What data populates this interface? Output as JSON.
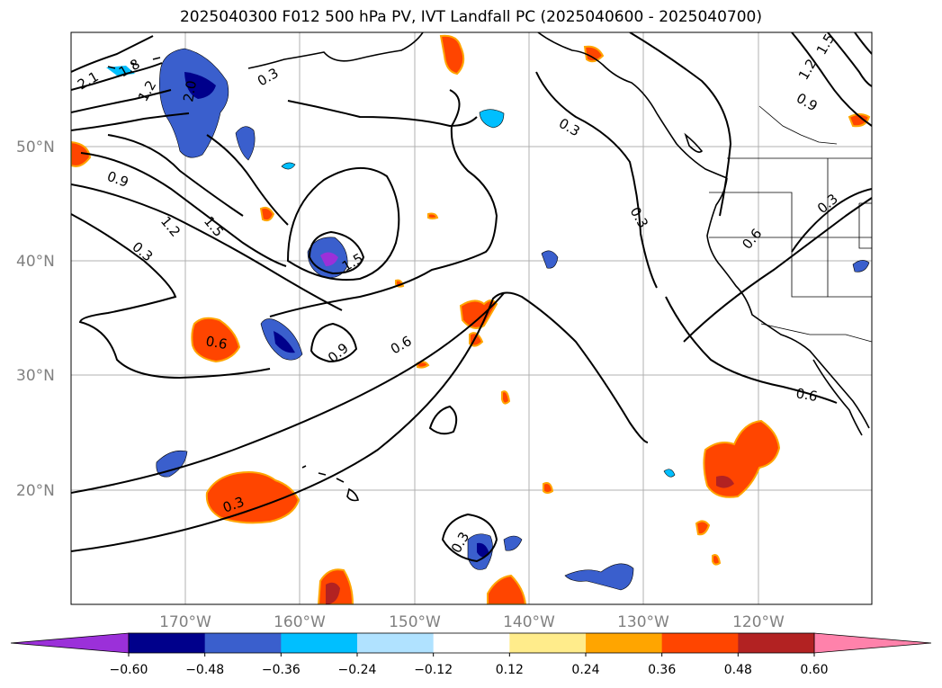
{
  "title": "2025040300 F012 500 hPa PV, IVT Landfall PC (2025040600 - 2025040700)",
  "lat_labels": [
    "50°N",
    "40°N",
    "30°N",
    "20°N"
  ],
  "lon_labels": [
    "170°W",
    "160°W",
    "150°W",
    "140°W",
    "130°W",
    "120°W"
  ],
  "contour_labels": [
    "2.1",
    "1.8",
    "1.2",
    "2.0",
    "0.3",
    "0.9",
    "1.5",
    "1.2",
    "0.3",
    "1.5",
    "0.3",
    "0.6",
    "0.9",
    "0.6",
    "0.3",
    "0.6",
    "0.3",
    "0.9",
    "0.3",
    "1.2",
    "1.5",
    "0.6",
    "0.3"
  ],
  "colorbar": {
    "ticks": [
      "−0.60",
      "−0.48",
      "−0.36",
      "−0.24",
      "−0.12",
      "0.12",
      "0.24",
      "0.36",
      "0.48",
      "0.60"
    ],
    "colors": [
      "#9b30d9",
      "#00008b",
      "#3a5fcd",
      "#00bfff",
      "#b0e2ff",
      "#ffffff",
      "#ffec8b",
      "#ffa500",
      "#ff4500",
      "#b22222",
      "#ff82ab"
    ]
  }
}
